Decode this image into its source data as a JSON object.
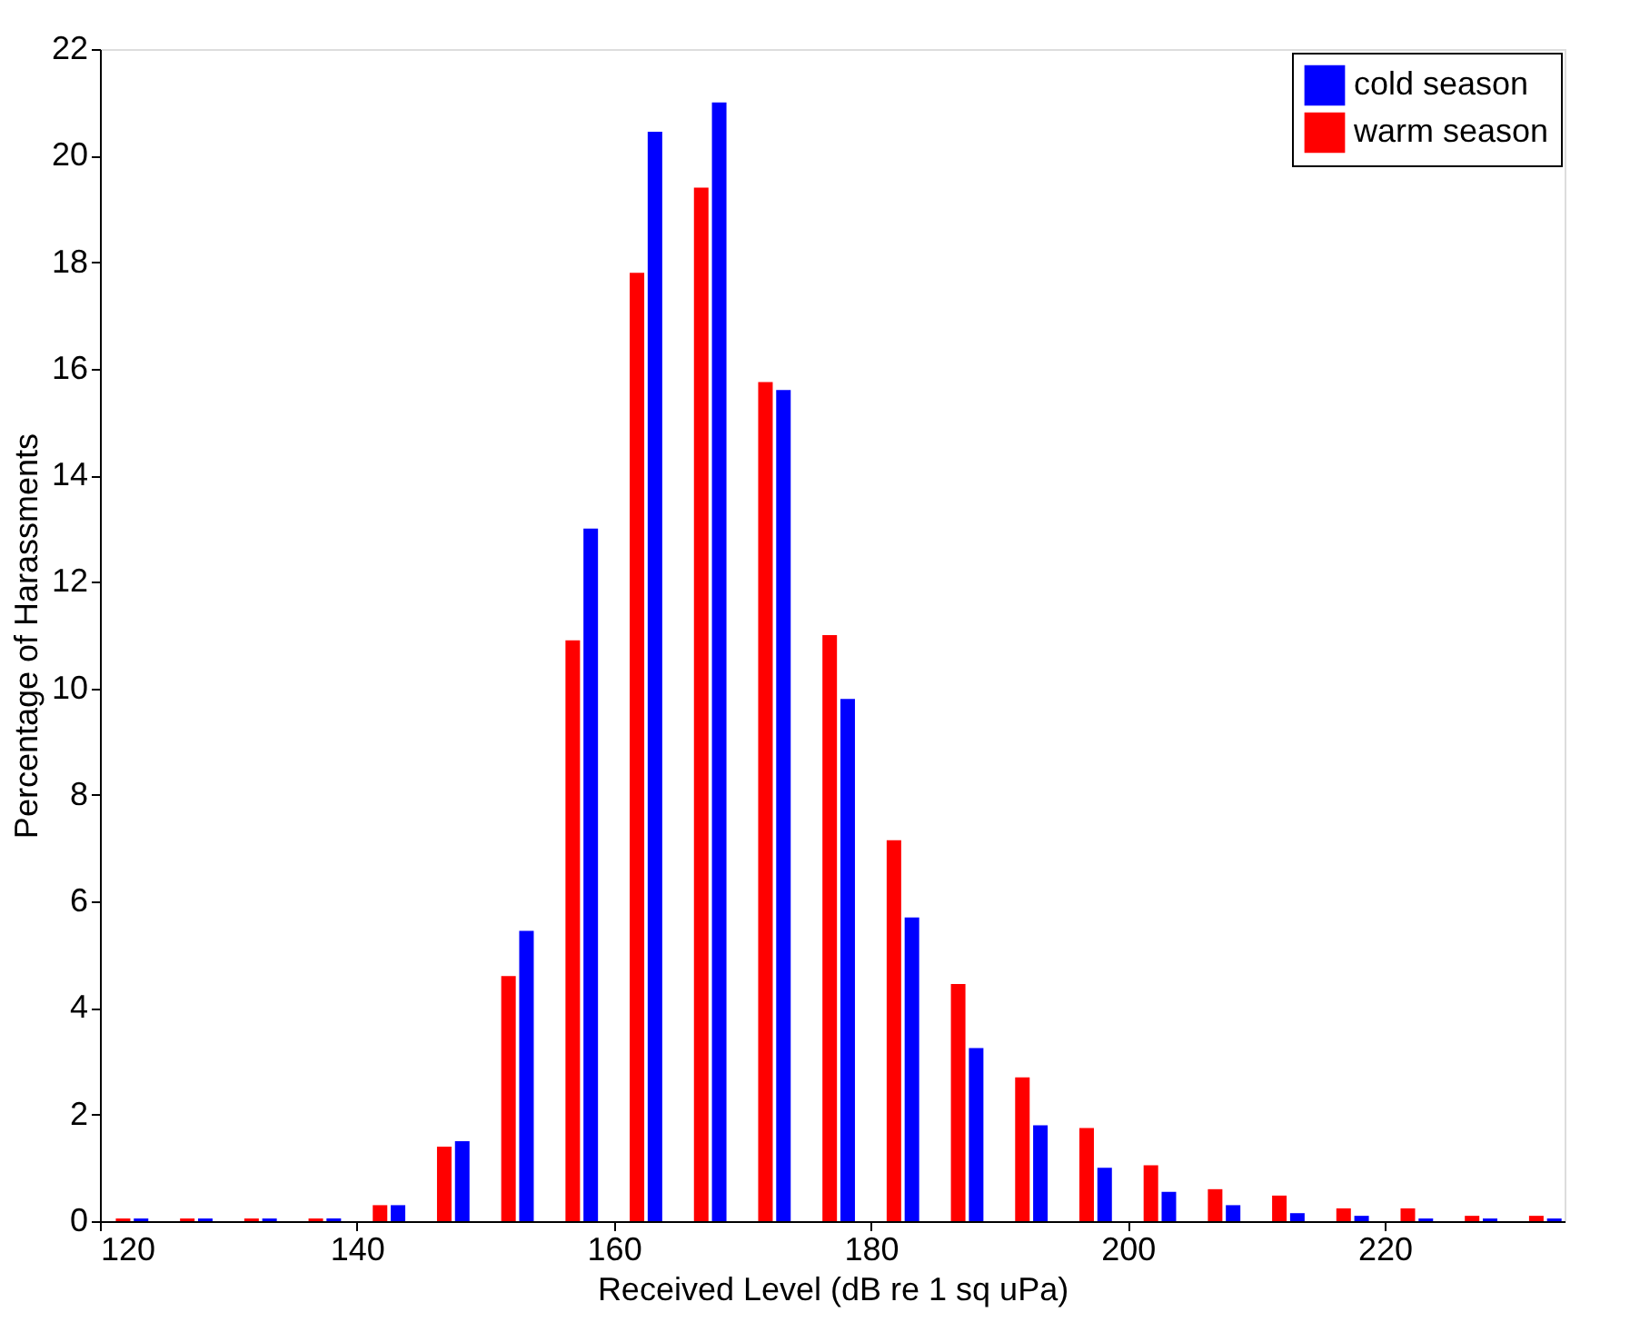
{
  "chart_data": {
    "type": "bar",
    "xlabel": "Received Level (dB re 1 sq uPa)",
    "ylabel": "Percentage of Harassments",
    "xlim": [
      120,
      234
    ],
    "xticks": [
      120,
      140,
      160,
      180,
      200,
      220
    ],
    "ylim": [
      0,
      22
    ],
    "yticks": [
      0,
      2,
      4,
      6,
      8,
      10,
      12,
      14,
      16,
      18,
      20,
      22
    ],
    "grid": false,
    "legend": "top right",
    "series": [
      {
        "name": "cold season",
        "color": "#0000ff",
        "x": [
          123.2,
          128.2,
          133.2,
          138.2,
          143.2,
          148.2,
          153.2,
          158.2,
          163.2,
          168.2,
          173.2,
          178.2,
          183.2,
          188.2,
          193.2,
          198.2,
          203.2,
          208.2,
          213.2,
          218.2,
          223.2,
          228.2,
          233.2
        ],
        "values": [
          0.05,
          0.05,
          0.05,
          0.05,
          0.3,
          1.5,
          5.45,
          13.0,
          20.45,
          21.0,
          15.6,
          9.8,
          5.7,
          3.25,
          1.8,
          1.0,
          0.55,
          0.3,
          0.15,
          0.1,
          0.05,
          0.05,
          0.05
        ]
      },
      {
        "name": "warm season",
        "color": "#ff0000",
        "x": [
          121.8,
          126.8,
          131.8,
          136.8,
          141.8,
          146.8,
          151.8,
          156.8,
          161.8,
          166.8,
          171.8,
          176.8,
          181.8,
          186.8,
          191.8,
          196.8,
          201.8,
          206.8,
          211.8,
          216.8,
          221.8,
          226.8,
          231.8
        ],
        "values": [
          0.05,
          0.05,
          0.05,
          0.05,
          0.3,
          1.4,
          4.6,
          10.9,
          17.8,
          19.4,
          15.75,
          11.0,
          7.15,
          4.45,
          2.7,
          1.75,
          1.05,
          0.6,
          0.48,
          0.24,
          0.24,
          0.1,
          0.1
        ]
      }
    ]
  }
}
